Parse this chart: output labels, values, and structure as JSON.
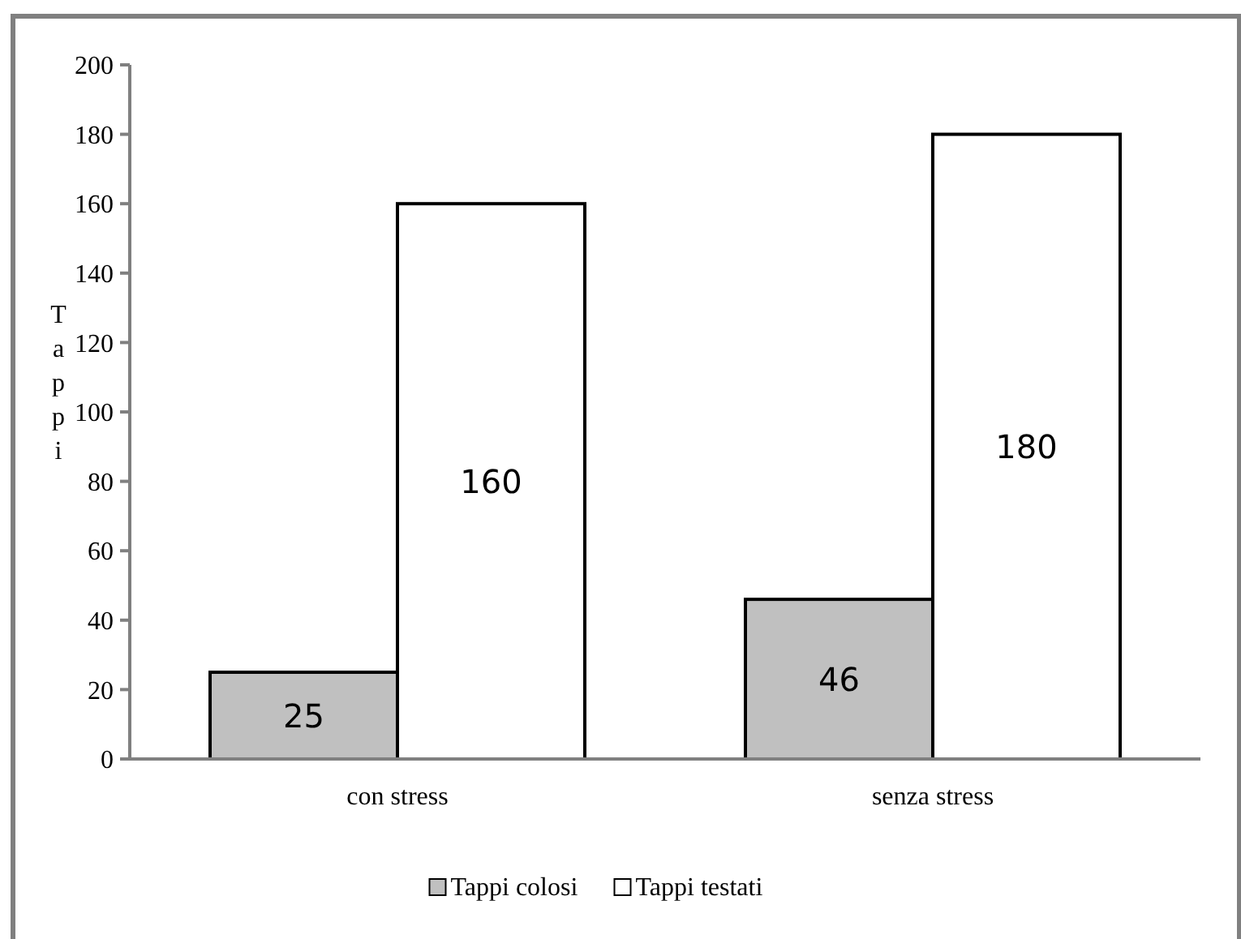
{
  "chart_data": {
    "type": "bar",
    "ylabel": "Tappi",
    "categories": [
      "con stress",
      "senza stress"
    ],
    "series": [
      {
        "name": "Tappi colosi",
        "color": "#c0c0c0",
        "values": [
          25,
          46
        ]
      },
      {
        "name": "Tappi testati",
        "color": "#ffffff",
        "values": [
          160,
          180
        ]
      }
    ],
    "ylim": [
      0,
      200
    ],
    "yticks": [
      0,
      20,
      40,
      60,
      80,
      100,
      120,
      140,
      160,
      180,
      200
    ],
    "data_labels": true,
    "legend": "bottom",
    "grid": false
  }
}
